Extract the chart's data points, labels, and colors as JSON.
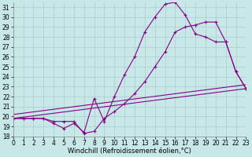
{
  "xlabel": "Windchill (Refroidissement éolien,°C)",
  "bg_color": "#c8e8e8",
  "line_color": "#880088",
  "xlim": [
    0,
    23
  ],
  "ylim": [
    18,
    31.5
  ],
  "xticks": [
    0,
    1,
    2,
    3,
    4,
    5,
    6,
    7,
    8,
    9,
    10,
    11,
    12,
    13,
    14,
    15,
    16,
    17,
    18,
    19,
    20,
    21,
    22,
    23
  ],
  "yticks": [
    18,
    19,
    20,
    21,
    22,
    23,
    24,
    25,
    26,
    27,
    28,
    29,
    30,
    31
  ],
  "grid_color": "#aacccc",
  "tick_fontsize": 5.5,
  "label_fontsize": 6.0,
  "line1_x": [
    0,
    1,
    2,
    3,
    4,
    5,
    6,
    7,
    8,
    9,
    10,
    11,
    12,
    13,
    14,
    15,
    16,
    17,
    18,
    19,
    20,
    21,
    22,
    23
  ],
  "line1_y": [
    19.8,
    19.8,
    19.8,
    19.8,
    19.3,
    18.8,
    19.3,
    18.4,
    21.8,
    19.5,
    22.0,
    24.2,
    26.0,
    28.5,
    30.0,
    31.3,
    31.5,
    30.2,
    28.3,
    28.0,
    27.5,
    27.5,
    24.5,
    22.8
  ],
  "line2_x": [
    0,
    1,
    2,
    3,
    4,
    5,
    6,
    7,
    8,
    9,
    10,
    11,
    12,
    13,
    14,
    15,
    16,
    17,
    18,
    19,
    20,
    21,
    22,
    23
  ],
  "line2_y": [
    19.8,
    19.8,
    19.8,
    19.8,
    19.5,
    19.5,
    19.5,
    18.3,
    18.5,
    19.8,
    20.5,
    21.3,
    22.3,
    23.5,
    25.0,
    26.5,
    28.5,
    29.0,
    29.2,
    29.5,
    29.5,
    27.5,
    24.5,
    22.8
  ],
  "line3_x": [
    0,
    23
  ],
  "line3_y": [
    19.8,
    22.8
  ],
  "line4_x": [
    0,
    23
  ],
  "line4_y": [
    20.2,
    23.2
  ]
}
